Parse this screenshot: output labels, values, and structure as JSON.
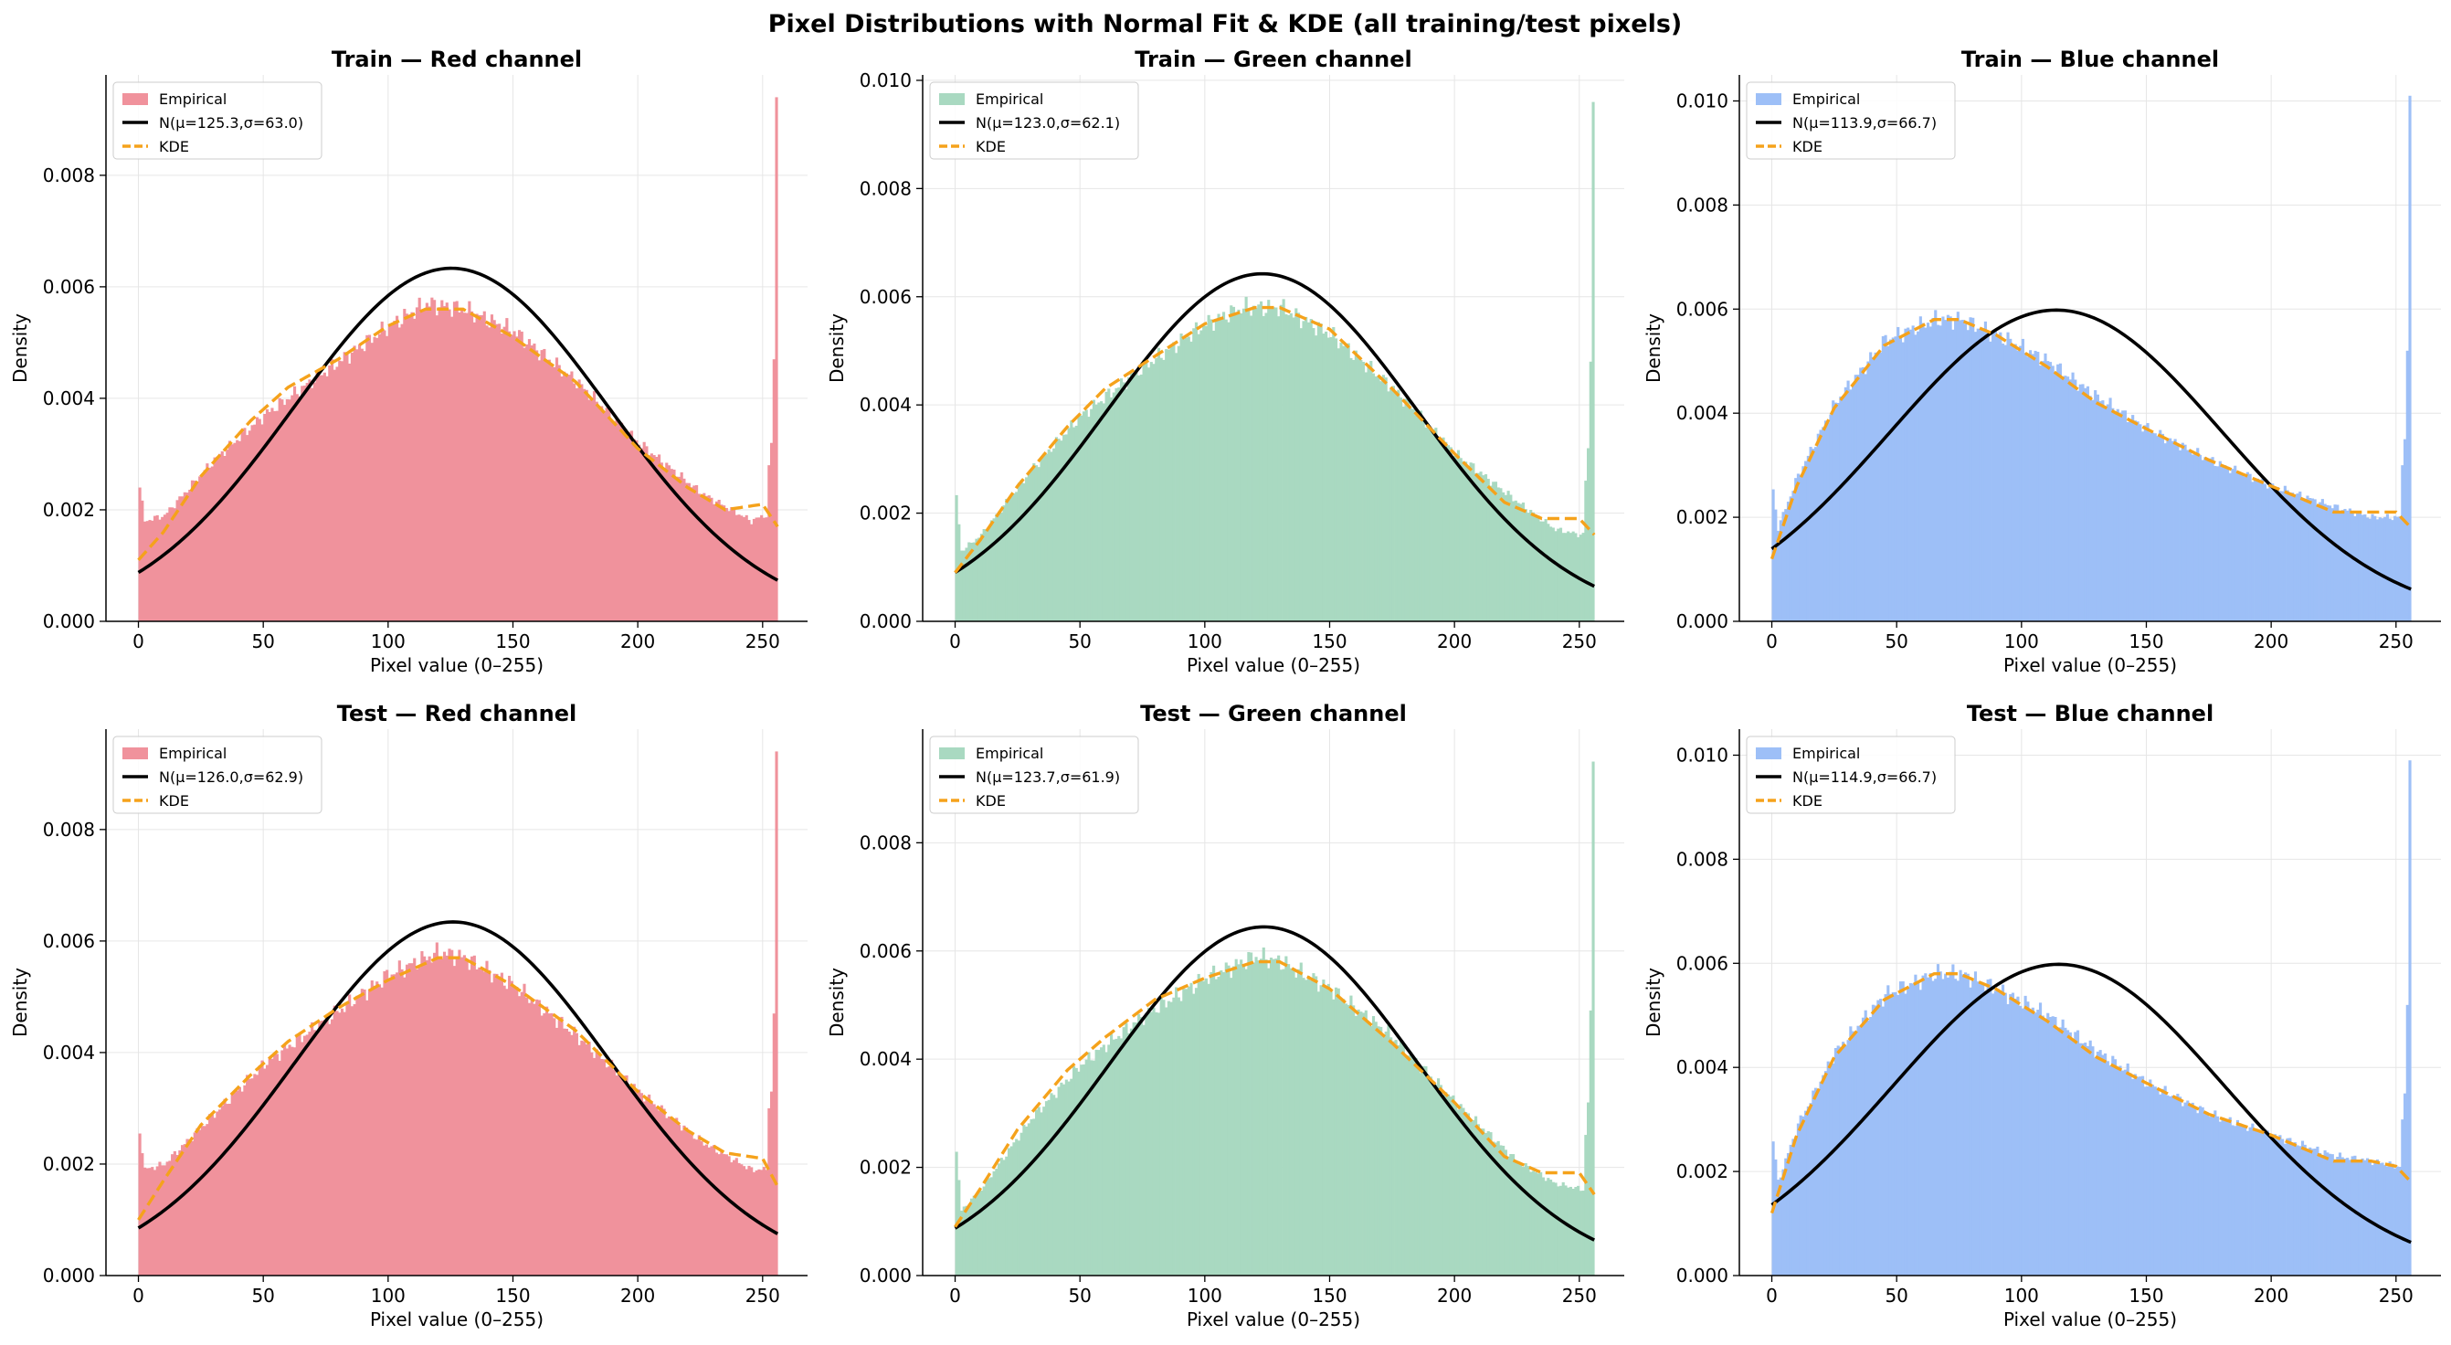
{
  "figure_title": "Pixel Distributions with Normal Fit & KDE (all training/test pixels)",
  "colors": {
    "red": "#f0929c",
    "green": "#a9d9c1",
    "blue": "#9dbff7",
    "normal_line": "#000000",
    "kde_line": "#f5a21b"
  },
  "chart_data": [
    {
      "type": "histogram",
      "split": "train",
      "channel": "red",
      "title": "Train — Red channel",
      "xlabel": "Pixel value (0–255)",
      "ylabel": "Density",
      "xlim": [
        -13,
        268
      ],
      "ylim": [
        0,
        0.0098
      ],
      "xticks": [
        0,
        50,
        100,
        150,
        200,
        250
      ],
      "yticks": [
        0,
        0.002,
        0.004,
        0.006,
        0.008
      ],
      "ytick_labels": [
        "0.000",
        "0.002",
        "0.004",
        "0.006",
        "0.008"
      ],
      "normal": {
        "mu": 125.3,
        "sigma": 63.0
      },
      "legend": [
        "Empirical",
        "N(μ=125.3,σ=63.0)",
        "KDE"
      ],
      "hist_anchors": [
        [
          0,
          0.0024
        ],
        [
          2,
          0.0018
        ],
        [
          10,
          0.0019
        ],
        [
          30,
          0.0029
        ],
        [
          50,
          0.0037
        ],
        [
          75,
          0.0045
        ],
        [
          100,
          0.0053
        ],
        [
          115,
          0.0057
        ],
        [
          130,
          0.0056
        ],
        [
          150,
          0.0052
        ],
        [
          175,
          0.0043
        ],
        [
          200,
          0.0032
        ],
        [
          225,
          0.0023
        ],
        [
          245,
          0.0018
        ],
        [
          250,
          0.0019
        ]
      ],
      "hist_spikes": [
        [
          252,
          0.0028
        ],
        [
          253,
          0.0032
        ],
        [
          254,
          0.0047
        ],
        [
          255,
          0.0094
        ]
      ],
      "kde": [
        [
          0,
          0.0011
        ],
        [
          10,
          0.0016
        ],
        [
          25,
          0.0026
        ],
        [
          45,
          0.0036
        ],
        [
          60,
          0.0042
        ],
        [
          80,
          0.0047
        ],
        [
          100,
          0.0053
        ],
        [
          115,
          0.0056
        ],
        [
          130,
          0.0056
        ],
        [
          150,
          0.0051
        ],
        [
          175,
          0.0043
        ],
        [
          200,
          0.0031
        ],
        [
          220,
          0.0024
        ],
        [
          235,
          0.002
        ],
        [
          250,
          0.0021
        ],
        [
          256,
          0.0017
        ]
      ]
    },
    {
      "type": "histogram",
      "split": "train",
      "channel": "green",
      "title": "Train — Green channel",
      "xlabel": "Pixel value (0–255)",
      "ylabel": "Density",
      "xlim": [
        -13,
        268
      ],
      "ylim": [
        0,
        0.0101
      ],
      "xticks": [
        0,
        50,
        100,
        150,
        200,
        250
      ],
      "yticks": [
        0,
        0.002,
        0.004,
        0.006,
        0.008,
        0.01
      ],
      "ytick_labels": [
        "0.000",
        "0.002",
        "0.004",
        "0.006",
        "0.008",
        "0.010"
      ],
      "normal": {
        "mu": 123.0,
        "sigma": 62.1
      },
      "legend": [
        "Empirical",
        "N(μ=123.0,σ=62.1)",
        "KDE"
      ],
      "hist_anchors": [
        [
          0,
          0.0023
        ],
        [
          2,
          0.0013
        ],
        [
          10,
          0.0016
        ],
        [
          30,
          0.0028
        ],
        [
          50,
          0.0038
        ],
        [
          75,
          0.0047
        ],
        [
          100,
          0.0055
        ],
        [
          115,
          0.0058
        ],
        [
          130,
          0.0058
        ],
        [
          150,
          0.0053
        ],
        [
          175,
          0.0043
        ],
        [
          200,
          0.0031
        ],
        [
          225,
          0.0022
        ],
        [
          240,
          0.0017
        ],
        [
          250,
          0.0016
        ]
      ],
      "hist_spikes": [
        [
          252,
          0.0026
        ],
        [
          253,
          0.0032
        ],
        [
          254,
          0.0048
        ],
        [
          255,
          0.0096
        ]
      ],
      "kde": [
        [
          0,
          0.0009
        ],
        [
          10,
          0.0015
        ],
        [
          25,
          0.0025
        ],
        [
          45,
          0.0036
        ],
        [
          60,
          0.0043
        ],
        [
          80,
          0.0049
        ],
        [
          100,
          0.0055
        ],
        [
          120,
          0.0058
        ],
        [
          130,
          0.0058
        ],
        [
          150,
          0.0054
        ],
        [
          175,
          0.0043
        ],
        [
          200,
          0.0031
        ],
        [
          220,
          0.0022
        ],
        [
          235,
          0.0019
        ],
        [
          250,
          0.0019
        ],
        [
          256,
          0.0016
        ]
      ]
    },
    {
      "type": "histogram",
      "split": "train",
      "channel": "blue",
      "title": "Train — Blue channel",
      "xlabel": "Pixel value (0–255)",
      "ylabel": "Density",
      "xlim": [
        -13,
        268
      ],
      "ylim": [
        0,
        0.0105
      ],
      "xticks": [
        0,
        50,
        100,
        150,
        200,
        250
      ],
      "yticks": [
        0,
        0.002,
        0.004,
        0.006,
        0.008,
        0.01
      ],
      "ytick_labels": [
        "0.000",
        "0.002",
        "0.004",
        "0.006",
        "0.008",
        "0.010"
      ],
      "normal": {
        "mu": 113.9,
        "sigma": 66.7
      },
      "legend": [
        "Empirical",
        "N(μ=113.9,σ=66.7)",
        "KDE"
      ],
      "hist_anchors": [
        [
          0,
          0.0025
        ],
        [
          2,
          0.0018
        ],
        [
          10,
          0.0028
        ],
        [
          25,
          0.0042
        ],
        [
          45,
          0.0054
        ],
        [
          65,
          0.0058
        ],
        [
          75,
          0.0058
        ],
        [
          90,
          0.0055
        ],
        [
          110,
          0.005
        ],
        [
          130,
          0.0043
        ],
        [
          150,
          0.0037
        ],
        [
          175,
          0.0031
        ],
        [
          200,
          0.0026
        ],
        [
          225,
          0.0022
        ],
        [
          240,
          0.002
        ],
        [
          250,
          0.002
        ]
      ],
      "hist_spikes": [
        [
          252,
          0.003
        ],
        [
          253,
          0.0035
        ],
        [
          254,
          0.0052
        ],
        [
          255,
          0.0101
        ]
      ],
      "kde": [
        [
          0,
          0.0012
        ],
        [
          10,
          0.0026
        ],
        [
          25,
          0.0041
        ],
        [
          45,
          0.0053
        ],
        [
          65,
          0.0058
        ],
        [
          75,
          0.0058
        ],
        [
          90,
          0.0055
        ],
        [
          110,
          0.0049
        ],
        [
          130,
          0.0042
        ],
        [
          150,
          0.0037
        ],
        [
          175,
          0.0031
        ],
        [
          200,
          0.0026
        ],
        [
          225,
          0.0021
        ],
        [
          240,
          0.0021
        ],
        [
          250,
          0.0021
        ],
        [
          256,
          0.0018
        ]
      ]
    },
    {
      "type": "histogram",
      "split": "test",
      "channel": "red",
      "title": "Test — Red channel",
      "xlabel": "Pixel value (0–255)",
      "ylabel": "Density",
      "xlim": [
        -13,
        268
      ],
      "ylim": [
        0,
        0.0098
      ],
      "xticks": [
        0,
        50,
        100,
        150,
        200,
        250
      ],
      "yticks": [
        0,
        0.002,
        0.004,
        0.006,
        0.008
      ],
      "ytick_labels": [
        "0.000",
        "0.002",
        "0.004",
        "0.006",
        "0.008"
      ],
      "normal": {
        "mu": 126.0,
        "sigma": 62.9
      },
      "legend": [
        "Empirical",
        "N(μ=126.0,σ=62.9)",
        "KDE"
      ],
      "hist_anchors": [
        [
          0,
          0.0026
        ],
        [
          2,
          0.0019
        ],
        [
          10,
          0.002
        ],
        [
          30,
          0.0029
        ],
        [
          50,
          0.0038
        ],
        [
          75,
          0.0046
        ],
        [
          100,
          0.0054
        ],
        [
          120,
          0.0058
        ],
        [
          130,
          0.0057
        ],
        [
          150,
          0.0052
        ],
        [
          175,
          0.0043
        ],
        [
          200,
          0.0033
        ],
        [
          225,
          0.0024
        ],
        [
          245,
          0.0019
        ],
        [
          250,
          0.0019
        ]
      ],
      "hist_spikes": [
        [
          252,
          0.003
        ],
        [
          253,
          0.0033
        ],
        [
          254,
          0.0047
        ],
        [
          255,
          0.0094
        ]
      ],
      "kde": [
        [
          0,
          0.001
        ],
        [
          10,
          0.0017
        ],
        [
          25,
          0.0027
        ],
        [
          45,
          0.0036
        ],
        [
          60,
          0.0042
        ],
        [
          80,
          0.0048
        ],
        [
          100,
          0.0053
        ],
        [
          120,
          0.0057
        ],
        [
          130,
          0.0057
        ],
        [
          150,
          0.0052
        ],
        [
          175,
          0.0044
        ],
        [
          200,
          0.0033
        ],
        [
          220,
          0.0026
        ],
        [
          235,
          0.0022
        ],
        [
          250,
          0.0021
        ],
        [
          256,
          0.0016
        ]
      ]
    },
    {
      "type": "histogram",
      "split": "test",
      "channel": "green",
      "title": "Test — Green channel",
      "xlabel": "Pixel value (0–255)",
      "ylabel": "Density",
      "xlim": [
        -13,
        268
      ],
      "ylim": [
        0,
        0.0101
      ],
      "xticks": [
        0,
        50,
        100,
        150,
        200,
        250
      ],
      "yticks": [
        0,
        0.002,
        0.004,
        0.006,
        0.008
      ],
      "ytick_labels": [
        "0.000",
        "0.002",
        "0.004",
        "0.006",
        "0.008"
      ],
      "normal": {
        "mu": 123.7,
        "sigma": 61.9
      },
      "legend": [
        "Empirical",
        "N(μ=123.7,σ=61.9)",
        "KDE"
      ],
      "hist_anchors": [
        [
          0,
          0.0023
        ],
        [
          2,
          0.0012
        ],
        [
          10,
          0.0016
        ],
        [
          30,
          0.0029
        ],
        [
          50,
          0.0039
        ],
        [
          75,
          0.0048
        ],
        [
          100,
          0.0055
        ],
        [
          120,
          0.0059
        ],
        [
          130,
          0.0058
        ],
        [
          150,
          0.0053
        ],
        [
          175,
          0.0044
        ],
        [
          200,
          0.0032
        ],
        [
          225,
          0.0021
        ],
        [
          240,
          0.0017
        ],
        [
          250,
          0.0016
        ]
      ],
      "hist_spikes": [
        [
          252,
          0.0026
        ],
        [
          253,
          0.0032
        ],
        [
          254,
          0.0049
        ],
        [
          255,
          0.0095
        ]
      ],
      "kde": [
        [
          0,
          0.0009
        ],
        [
          10,
          0.0016
        ],
        [
          25,
          0.0027
        ],
        [
          45,
          0.0038
        ],
        [
          60,
          0.0044
        ],
        [
          80,
          0.0051
        ],
        [
          100,
          0.0055
        ],
        [
          120,
          0.0058
        ],
        [
          130,
          0.0058
        ],
        [
          150,
          0.0053
        ],
        [
          175,
          0.0043
        ],
        [
          200,
          0.0032
        ],
        [
          220,
          0.0022
        ],
        [
          235,
          0.0019
        ],
        [
          250,
          0.0019
        ],
        [
          256,
          0.0015
        ]
      ]
    },
    {
      "type": "histogram",
      "split": "test",
      "channel": "blue",
      "title": "Test — Blue channel",
      "xlabel": "Pixel value (0–255)",
      "ylabel": "Density",
      "xlim": [
        -13,
        268
      ],
      "ylim": [
        0,
        0.0105
      ],
      "xticks": [
        0,
        50,
        100,
        150,
        200,
        250
      ],
      "yticks": [
        0,
        0.002,
        0.004,
        0.006,
        0.008,
        0.01
      ],
      "ytick_labels": [
        "0.000",
        "0.002",
        "0.004",
        "0.006",
        "0.008",
        "0.010"
      ],
      "normal": {
        "mu": 114.9,
        "sigma": 66.7
      },
      "legend": [
        "Empirical",
        "N(μ=114.9,σ=66.7)",
        "KDE"
      ],
      "hist_anchors": [
        [
          0,
          0.0026
        ],
        [
          2,
          0.0018
        ],
        [
          10,
          0.0029
        ],
        [
          25,
          0.0043
        ],
        [
          45,
          0.0054
        ],
        [
          65,
          0.0058
        ],
        [
          75,
          0.0058
        ],
        [
          90,
          0.0055
        ],
        [
          110,
          0.005
        ],
        [
          130,
          0.0043
        ],
        [
          150,
          0.0037
        ],
        [
          175,
          0.0031
        ],
        [
          200,
          0.0027
        ],
        [
          225,
          0.0023
        ],
        [
          240,
          0.0022
        ],
        [
          250,
          0.0021
        ]
      ],
      "hist_spikes": [
        [
          252,
          0.003
        ],
        [
          253,
          0.0035
        ],
        [
          254,
          0.0052
        ],
        [
          255,
          0.0099
        ]
      ],
      "kde": [
        [
          0,
          0.0012
        ],
        [
          10,
          0.0027
        ],
        [
          25,
          0.0042
        ],
        [
          45,
          0.0053
        ],
        [
          65,
          0.0058
        ],
        [
          75,
          0.0058
        ],
        [
          90,
          0.0055
        ],
        [
          110,
          0.0049
        ],
        [
          130,
          0.0042
        ],
        [
          150,
          0.0037
        ],
        [
          175,
          0.0031
        ],
        [
          200,
          0.0027
        ],
        [
          225,
          0.0022
        ],
        [
          240,
          0.0022
        ],
        [
          250,
          0.0021
        ],
        [
          256,
          0.0018
        ]
      ]
    }
  ]
}
